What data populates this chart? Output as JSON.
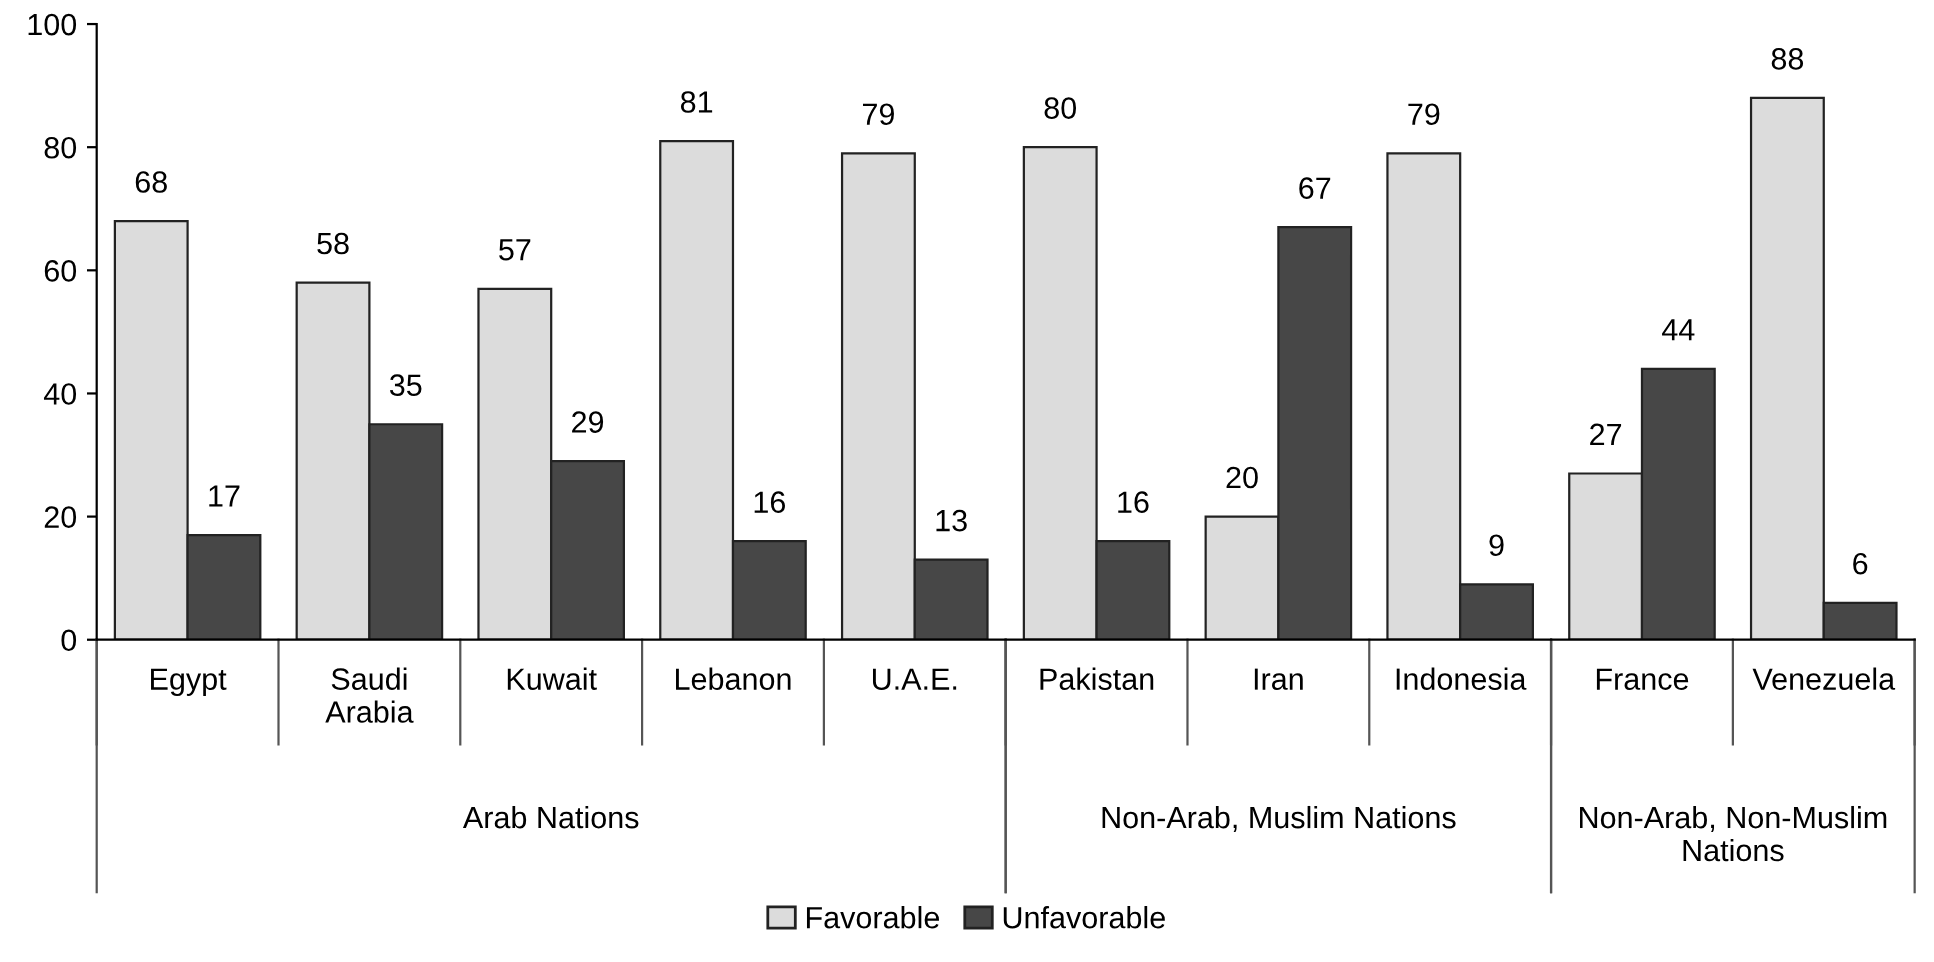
{
  "chart_data": {
    "type": "bar",
    "categories": [
      "Egypt",
      "Saudi\nArabia",
      "Kuwait",
      "Lebanon",
      "U.A.E.",
      "Pakistan",
      "Iran",
      "Indonesia",
      "France",
      "Venezuela"
    ],
    "series": [
      {
        "name": "Favorable",
        "color": "#dcdcdc",
        "values": [
          68,
          58,
          57,
          81,
          79,
          80,
          20,
          79,
          27,
          88
        ]
      },
      {
        "name": "Unfavorable",
        "color": "#474747",
        "values": [
          17,
          35,
          29,
          16,
          13,
          16,
          67,
          9,
          44,
          6
        ]
      }
    ],
    "ylim": [
      0,
      100
    ],
    "yticks": [
      0,
      20,
      40,
      60,
      80,
      100
    ],
    "data_labels": true,
    "grid": false,
    "legend": "bottom",
    "annotations": [
      "Arab Nations",
      "Non-Arab, Muslim Nations",
      "Non-Arab, Non-Muslim\nNations"
    ]
  }
}
